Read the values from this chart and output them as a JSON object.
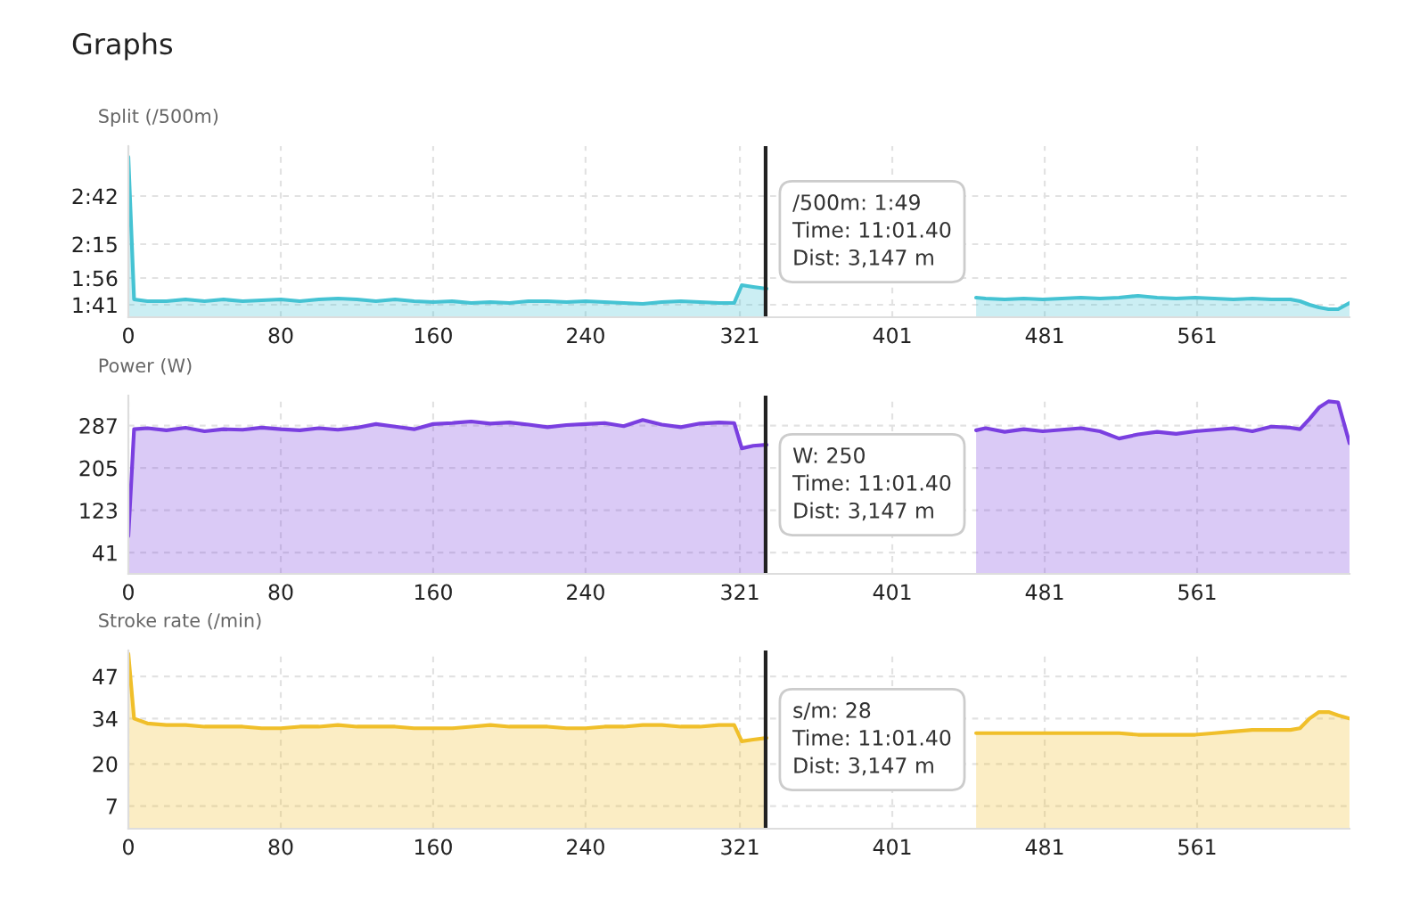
{
  "chart_data": [
    {
      "type": "area",
      "title": "Graphs",
      "subtitle": "Split (/500m)",
      "grid": true,
      "tick_labels": "xy",
      "x": [
        0,
        3,
        10,
        20,
        30,
        40,
        50,
        60,
        70,
        80,
        90,
        100,
        110,
        120,
        130,
        140,
        150,
        160,
        170,
        180,
        190,
        200,
        210,
        220,
        230,
        240,
        250,
        260,
        270,
        280,
        290,
        300,
        310,
        318,
        322,
        328,
        335,
        390,
        445,
        450,
        460,
        470,
        480,
        490,
        500,
        510,
        520,
        530,
        540,
        550,
        560,
        570,
        580,
        590,
        600,
        610,
        615,
        620,
        625,
        630,
        635,
        641
      ],
      "series": [
        {
          "color": "#45c3d3",
          "values": [
            184,
            104,
            103,
            103,
            104,
            103,
            104,
            103,
            103.5,
            104,
            103,
            104,
            104.5,
            104,
            103,
            104,
            103,
            102.5,
            103,
            102,
            102.5,
            102,
            103,
            103,
            102.5,
            103,
            102.5,
            102,
            101.5,
            102.5,
            103,
            102.5,
            102,
            102,
            112,
            111,
            110,
            null,
            105,
            104.5,
            104,
            104.5,
            104,
            104.5,
            105,
            104.5,
            105,
            106,
            105,
            104.5,
            105,
            104.5,
            104,
            104.5,
            104,
            104,
            103,
            101,
            99.5,
            98.5,
            98.5,
            102
          ]
        }
      ],
      "xlim": [
        0,
        641
      ],
      "xticks": [
        0,
        80,
        160,
        240,
        321,
        401,
        481,
        561
      ],
      "ylim": [
        94,
        190
      ],
      "yticks": [
        {
          "value": 101,
          "label": "1:41"
        },
        {
          "value": 116,
          "label": "1:56"
        },
        {
          "value": 135,
          "label": "2:15"
        },
        {
          "value": 162,
          "label": "2:42"
        }
      ],
      "ref_lines": [
        {
          "axis": "x",
          "value": 334.5,
          "color": "#222222"
        }
      ],
      "annotations": [
        "/500m: 1:49\nTime: 11:01.40\nDist: 3,147 m"
      ]
    },
    {
      "type": "area",
      "subtitle": "Power (W)",
      "grid": true,
      "x": [
        0,
        3,
        10,
        20,
        30,
        40,
        50,
        60,
        70,
        80,
        90,
        100,
        110,
        120,
        130,
        140,
        150,
        160,
        170,
        180,
        190,
        200,
        210,
        220,
        230,
        240,
        250,
        260,
        270,
        280,
        290,
        300,
        310,
        318,
        322,
        328,
        335,
        390,
        445,
        450,
        460,
        470,
        480,
        490,
        500,
        510,
        520,
        530,
        540,
        550,
        560,
        570,
        580,
        590,
        600,
        610,
        615,
        620,
        625,
        630,
        635,
        641
      ],
      "series": [
        {
          "color": "#7a3fe0",
          "values": [
            73,
            280,
            282,
            278,
            283,
            276,
            280,
            279,
            283,
            280,
            278,
            282,
            279,
            283,
            290,
            285,
            280,
            290,
            292,
            295,
            291,
            293,
            289,
            284,
            288,
            290,
            292,
            286,
            298,
            289,
            284,
            291,
            293,
            292,
            243,
            248,
            250,
            null,
            278,
            282,
            275,
            280,
            276,
            279,
            282,
            276,
            262,
            270,
            275,
            271,
            276,
            279,
            282,
            276,
            285,
            283,
            280,
            300,
            322,
            334,
            332,
            253
          ]
        }
      ],
      "xlim": [
        0,
        641
      ],
      "xticks": [
        0,
        80,
        160,
        240,
        321,
        401,
        481,
        561
      ],
      "ylim": [
        0,
        345
      ],
      "yticks": [
        41,
        123,
        205,
        287
      ],
      "ref_lines": [
        {
          "axis": "x",
          "value": 334.5,
          "color": "#222222"
        }
      ],
      "annotations": [
        "W: 250\nTime: 11:01.40\nDist: 3,147 m"
      ]
    },
    {
      "type": "area",
      "subtitle": "Stroke rate (/min)",
      "grid": true,
      "x": [
        0,
        3,
        10,
        20,
        30,
        40,
        50,
        60,
        70,
        80,
        90,
        100,
        110,
        120,
        130,
        140,
        150,
        160,
        170,
        180,
        190,
        200,
        210,
        220,
        230,
        240,
        250,
        260,
        270,
        280,
        290,
        300,
        310,
        318,
        322,
        328,
        335,
        390,
        445,
        450,
        460,
        470,
        480,
        490,
        500,
        510,
        520,
        530,
        540,
        550,
        560,
        570,
        580,
        590,
        600,
        610,
        615,
        620,
        625,
        630,
        635,
        641
      ],
      "series": [
        {
          "color": "#f0bf2a",
          "values": [
            54,
            34,
            32.5,
            32,
            32,
            31.5,
            31.5,
            31.5,
            31,
            31,
            31.5,
            31.5,
            32,
            31.5,
            31.5,
            31.5,
            31,
            31,
            31,
            31.5,
            32,
            31.5,
            31.5,
            31.5,
            31,
            31,
            31.5,
            31.5,
            32,
            32,
            31.5,
            31.5,
            32,
            32,
            27,
            27.5,
            28,
            null,
            29.5,
            29.5,
            29.5,
            29.5,
            29.5,
            29.5,
            29.5,
            29.5,
            29.5,
            29,
            29,
            29,
            29,
            29.5,
            30,
            30.5,
            30.5,
            30.5,
            31,
            34,
            36,
            36,
            35,
            34
          ]
        }
      ],
      "xlim": [
        0,
        641
      ],
      "xticks": [
        0,
        80,
        160,
        240,
        321,
        401,
        481,
        561
      ],
      "ylim": [
        0,
        55
      ],
      "yticks": [
        7,
        20,
        34,
        47
      ],
      "ref_lines": [
        {
          "axis": "x",
          "value": 334.5,
          "color": "#222222"
        }
      ],
      "annotations": [
        "s/m: 28\nTime: 11:01.40\nDist: 3,147 m"
      ]
    }
  ]
}
